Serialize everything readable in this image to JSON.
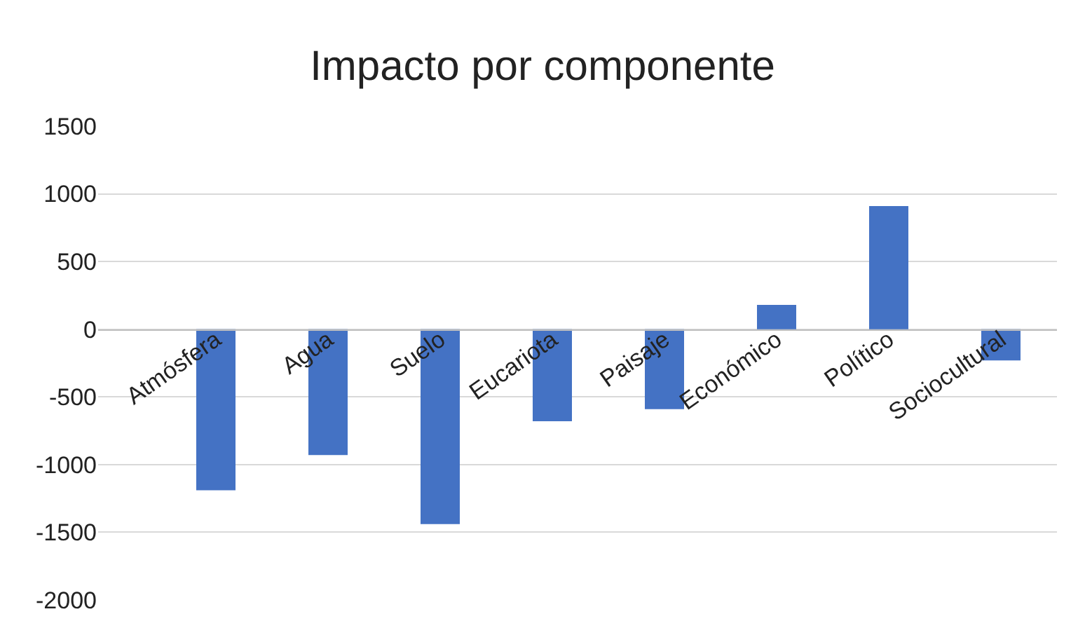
{
  "chart_data": {
    "type": "bar",
    "title": "Impacto por componente",
    "categories": [
      "Atmósfera",
      "Agua",
      "Suelo",
      "Eucariota",
      "Paisaje",
      "Económico",
      "Político",
      "Sociocultural"
    ],
    "values": [
      -1190,
      -930,
      -1440,
      -680,
      -590,
      180,
      910,
      -230
    ],
    "color": "#4472c4",
    "ylim": [
      -2000,
      1500
    ],
    "yticks": [
      -2000,
      -1500,
      -1000,
      -500,
      0,
      500,
      1000,
      1500
    ],
    "grid": "y"
  }
}
